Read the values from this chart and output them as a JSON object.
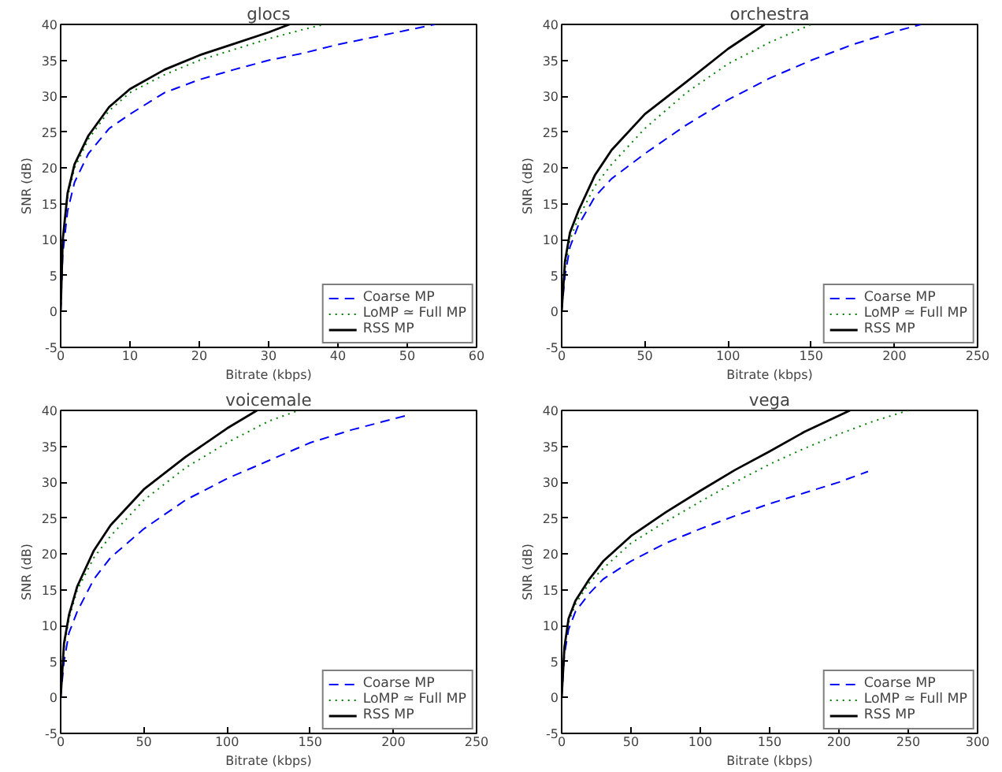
{
  "chart_data": [
    {
      "type": "line",
      "title": "glocs",
      "xlabel": "Bitrate (kbps)",
      "ylabel": "SNR (dB)",
      "xlim": [
        0,
        60
      ],
      "xticks": [
        0,
        10,
        20,
        30,
        40,
        50,
        60
      ],
      "ylim": [
        -5,
        40
      ],
      "yticks": [
        -5,
        0,
        5,
        10,
        15,
        20,
        25,
        30,
        35,
        40
      ],
      "grid": false,
      "legend": "bottom right",
      "series": [
        {
          "name": "Coarse MP",
          "color": "#0000ff",
          "line_style": "dashed",
          "x": [
            0,
            0.3,
            1,
            2,
            4,
            7,
            10,
            15,
            20,
            25,
            30,
            35,
            40,
            45,
            50,
            54
          ],
          "values": [
            0,
            8,
            14,
            18,
            22,
            25.5,
            27.5,
            30.5,
            32.3,
            33.7,
            35,
            36,
            37.2,
            38.2,
            39.2,
            40
          ]
        },
        {
          "name": "LoMP ≃ Full MP",
          "color": "#008000",
          "line_style": "dotted",
          "x": [
            0,
            0.3,
            1,
            2,
            4,
            7,
            10,
            15,
            20,
            25,
            30,
            35,
            38
          ],
          "values": [
            0,
            10,
            16,
            20,
            24,
            28,
            30.5,
            33,
            35,
            36.5,
            38,
            39.3,
            40
          ]
        },
        {
          "name": "RSS MP",
          "color": "#000000",
          "line_style": "solid",
          "x": [
            0,
            0.3,
            1,
            2,
            4,
            7,
            10,
            15,
            20,
            25,
            30,
            33
          ],
          "values": [
            0,
            10,
            16.5,
            20.5,
            24.5,
            28.5,
            31,
            33.7,
            35.7,
            37.3,
            38.9,
            40
          ]
        }
      ]
    },
    {
      "type": "line",
      "title": "orchestra",
      "xlabel": "Bitrate (kbps)",
      "ylabel": "SNR (dB)",
      "xlim": [
        0,
        250
      ],
      "xticks": [
        0,
        50,
        100,
        150,
        200,
        250
      ],
      "ylim": [
        -5,
        40
      ],
      "yticks": [
        -5,
        0,
        5,
        10,
        15,
        20,
        25,
        30,
        35,
        40
      ],
      "grid": false,
      "legend": "bottom right",
      "series": [
        {
          "name": "Coarse MP",
          "color": "#0000ff",
          "line_style": "dashed",
          "x": [
            0,
            2,
            5,
            10,
            20,
            30,
            50,
            75,
            100,
            125,
            150,
            175,
            200,
            216
          ],
          "values": [
            0,
            5,
            9,
            12,
            16,
            18.5,
            22,
            26,
            29.5,
            32.5,
            35,
            37.2,
            39,
            40
          ]
        },
        {
          "name": "LoMP ≃ Full MP",
          "color": "#008000",
          "line_style": "dotted",
          "x": [
            0,
            2,
            5,
            10,
            20,
            30,
            50,
            75,
            100,
            125,
            150
          ],
          "values": [
            0,
            6,
            10,
            13,
            17.5,
            20.5,
            25.5,
            30.5,
            34.5,
            37.5,
            40
          ]
        },
        {
          "name": "RSS MP",
          "color": "#000000",
          "line_style": "solid",
          "x": [
            0,
            2,
            5,
            10,
            20,
            30,
            50,
            75,
            100,
            122
          ],
          "values": [
            0,
            7,
            11,
            14,
            19,
            22.5,
            27.5,
            32,
            36.6,
            40
          ]
        }
      ]
    },
    {
      "type": "line",
      "title": "voicemale",
      "xlabel": "Bitrate (kbps)",
      "ylabel": "SNR (dB)",
      "xlim": [
        0,
        250
      ],
      "xticks": [
        0,
        50,
        100,
        150,
        200,
        250
      ],
      "ylim": [
        -5,
        40
      ],
      "yticks": [
        -5,
        0,
        5,
        10,
        15,
        20,
        25,
        30,
        35,
        40
      ],
      "grid": false,
      "legend": "bottom right",
      "series": [
        {
          "name": "Coarse MP",
          "color": "#0000ff",
          "line_style": "dashed",
          "x": [
            0,
            2,
            5,
            10,
            20,
            30,
            50,
            75,
            100,
            125,
            150,
            175,
            208
          ],
          "values": [
            0,
            5,
            9,
            12,
            16.5,
            19.5,
            23.5,
            27.5,
            30.5,
            33,
            35.5,
            37.3,
            39.3
          ]
        },
        {
          "name": "LoMP ≃ Full MP",
          "color": "#008000",
          "line_style": "dotted",
          "x": [
            0,
            2,
            5,
            10,
            20,
            30,
            50,
            75,
            100,
            125,
            143
          ],
          "values": [
            0,
            7,
            11,
            15,
            19.5,
            22.5,
            27.5,
            32,
            35.5,
            38.5,
            40
          ]
        },
        {
          "name": "RSS MP",
          "color": "#000000",
          "line_style": "solid",
          "x": [
            0,
            2,
            5,
            10,
            20,
            30,
            50,
            75,
            100,
            118
          ],
          "values": [
            0,
            7.5,
            11.5,
            15.5,
            20.5,
            24,
            29,
            33.5,
            37.5,
            40
          ]
        }
      ]
    },
    {
      "type": "line",
      "title": "vega",
      "xlabel": "Bitrate (kbps)",
      "ylabel": "SNR (dB)",
      "xlim": [
        0,
        300
      ],
      "xticks": [
        0,
        50,
        100,
        150,
        200,
        250,
        300
      ],
      "ylim": [
        -5,
        40
      ],
      "yticks": [
        -5,
        0,
        5,
        10,
        15,
        20,
        25,
        30,
        35,
        40
      ],
      "grid": false,
      "legend": "bottom right",
      "series": [
        {
          "name": "Coarse MP",
          "color": "#0000ff",
          "line_style": "dashed",
          "x": [
            0,
            2,
            5,
            10,
            20,
            30,
            50,
            75,
            100,
            125,
            150,
            175,
            200,
            221
          ],
          "values": [
            0,
            6,
            9.5,
            12,
            14.5,
            16.5,
            19,
            21.5,
            23.5,
            25.3,
            27,
            28.5,
            30,
            31.5
          ]
        },
        {
          "name": "LoMP ≃ Full MP",
          "color": "#008000",
          "line_style": "dotted",
          "x": [
            0,
            2,
            5,
            10,
            20,
            30,
            50,
            75,
            100,
            125,
            150,
            175,
            200,
            225,
            250
          ],
          "values": [
            0,
            7,
            10.5,
            13,
            16,
            18,
            21.5,
            24.5,
            27.3,
            30,
            32.5,
            34.7,
            36.7,
            38.5,
            40
          ]
        },
        {
          "name": "RSS MP",
          "color": "#000000",
          "line_style": "solid",
          "x": [
            0,
            2,
            5,
            10,
            20,
            30,
            50,
            75,
            100,
            125,
            150,
            175,
            208
          ],
          "values": [
            0,
            7,
            11,
            13.5,
            16.5,
            19,
            22.5,
            25.8,
            28.8,
            31.7,
            34.3,
            37,
            40
          ]
        }
      ]
    }
  ]
}
